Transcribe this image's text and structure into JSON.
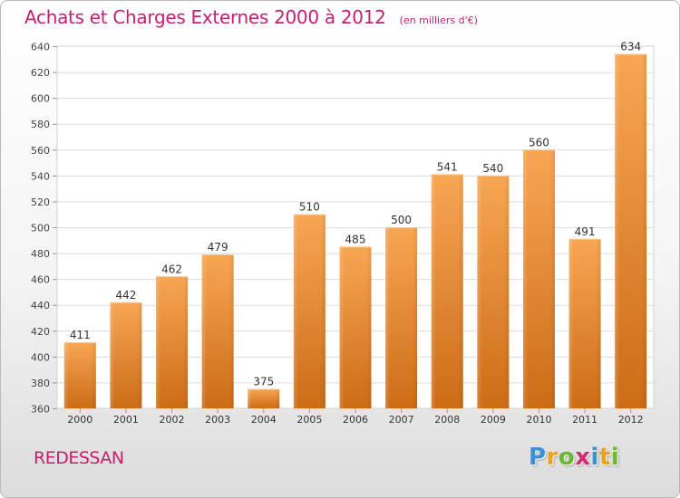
{
  "title": "Achats et Charges Externes 2000 à 2012",
  "subtitle": "(en milliers d'€)",
  "commune": "REDESSAN",
  "brand": {
    "letters": [
      "P",
      "r",
      "o",
      "x",
      "i",
      "t",
      "i"
    ],
    "colors": [
      "#3a8fd8",
      "#e8a21b",
      "#6ab82e",
      "#d8286e",
      "#3a8fd8",
      "#e8a21b",
      "#6ab82e"
    ]
  },
  "colors": {
    "accent": "#c81e6e",
    "bar_light": "#f7a654",
    "bar_dark": "#cc6c17"
  },
  "chart_data": {
    "type": "bar",
    "title": "Achats et Charges Externes 2000 à 2012",
    "subtitle": "(en milliers d'€)",
    "categories": [
      "2000",
      "2001",
      "2002",
      "2003",
      "2004",
      "2005",
      "2006",
      "2007",
      "2008",
      "2009",
      "2010",
      "2011",
      "2012"
    ],
    "values": [
      411,
      442,
      462,
      479,
      375,
      510,
      485,
      500,
      541,
      540,
      560,
      491,
      634
    ],
    "ylim": [
      360,
      640
    ],
    "yticks": [
      360,
      380,
      400,
      420,
      440,
      460,
      480,
      500,
      520,
      540,
      560,
      580,
      600,
      620,
      640
    ],
    "grid": true,
    "xlabel": "",
    "ylabel": ""
  }
}
